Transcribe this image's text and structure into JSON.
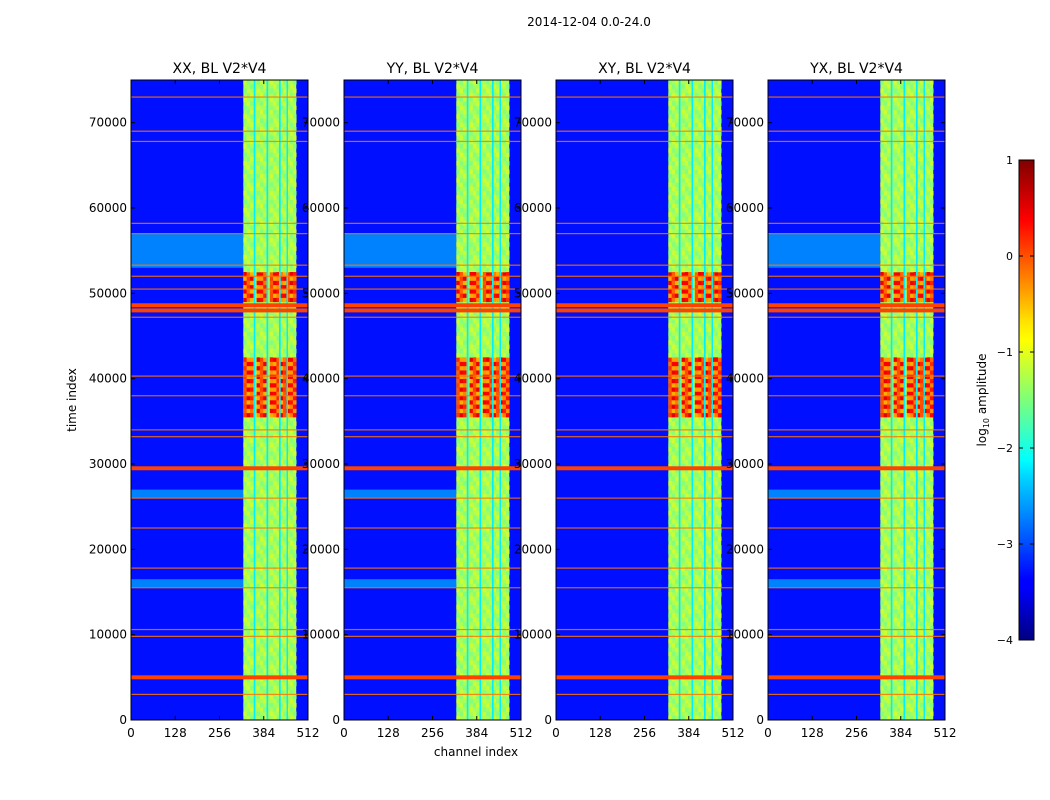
{
  "figure_title": "2014-12-04 0.0-24.0",
  "chart_data": {
    "type": "heatmap",
    "suptitle": "2014-12-04 0.0-24.0",
    "xlabel": "channel index",
    "ylabel": "time index",
    "xlim": [
      0,
      512
    ],
    "ylim": [
      0,
      75000
    ],
    "xticks": [
      0,
      128,
      256,
      384,
      512
    ],
    "yticks": [
      0,
      10000,
      20000,
      30000,
      40000,
      50000,
      60000,
      70000
    ],
    "colorbar": {
      "label": "log10 amplitude",
      "label_prefix": "log",
      "label_subscript": "10",
      "label_suffix": " amplitude",
      "range": [
        -4,
        1
      ],
      "ticks": [
        -4,
        -3,
        -2,
        -1,
        0,
        1
      ],
      "tick_labels": [
        "−4",
        "−3",
        "−2",
        "−1",
        "0",
        "1"
      ],
      "colormap": "jet"
    },
    "panels": [
      {
        "title": "XX, BL V2*V4"
      },
      {
        "title": "YY, BL V2*V4"
      },
      {
        "title": "XY, BL V2*V4"
      },
      {
        "title": "YX, BL V2*V4"
      }
    ],
    "features": {
      "background_level": -3.3,
      "band_start_channel": 325,
      "band_end_channel": 478,
      "band_level": -1.3,
      "gap_channels": [
        [
          355,
          360
        ],
        [
          392,
          397
        ],
        [
          428,
          433
        ],
        [
          450,
          454
        ]
      ],
      "strong_rfi_times": [
        5000,
        29500,
        48000,
        48600
      ],
      "weak_rfi_times": [
        3000,
        9800,
        10600,
        15500,
        17800,
        22500,
        26000,
        33200,
        34000,
        38000,
        40300,
        47200,
        50500,
        52000,
        53300,
        57000,
        58200,
        67800,
        69000,
        73000
      ],
      "hot_intervals": [
        [
          35500,
          42500
        ],
        [
          49000,
          52500
        ]
      ],
      "elevated_intervals": [
        [
          53000,
          57000
        ],
        [
          26000,
          27000
        ],
        [
          15500,
          16500
        ]
      ]
    }
  }
}
